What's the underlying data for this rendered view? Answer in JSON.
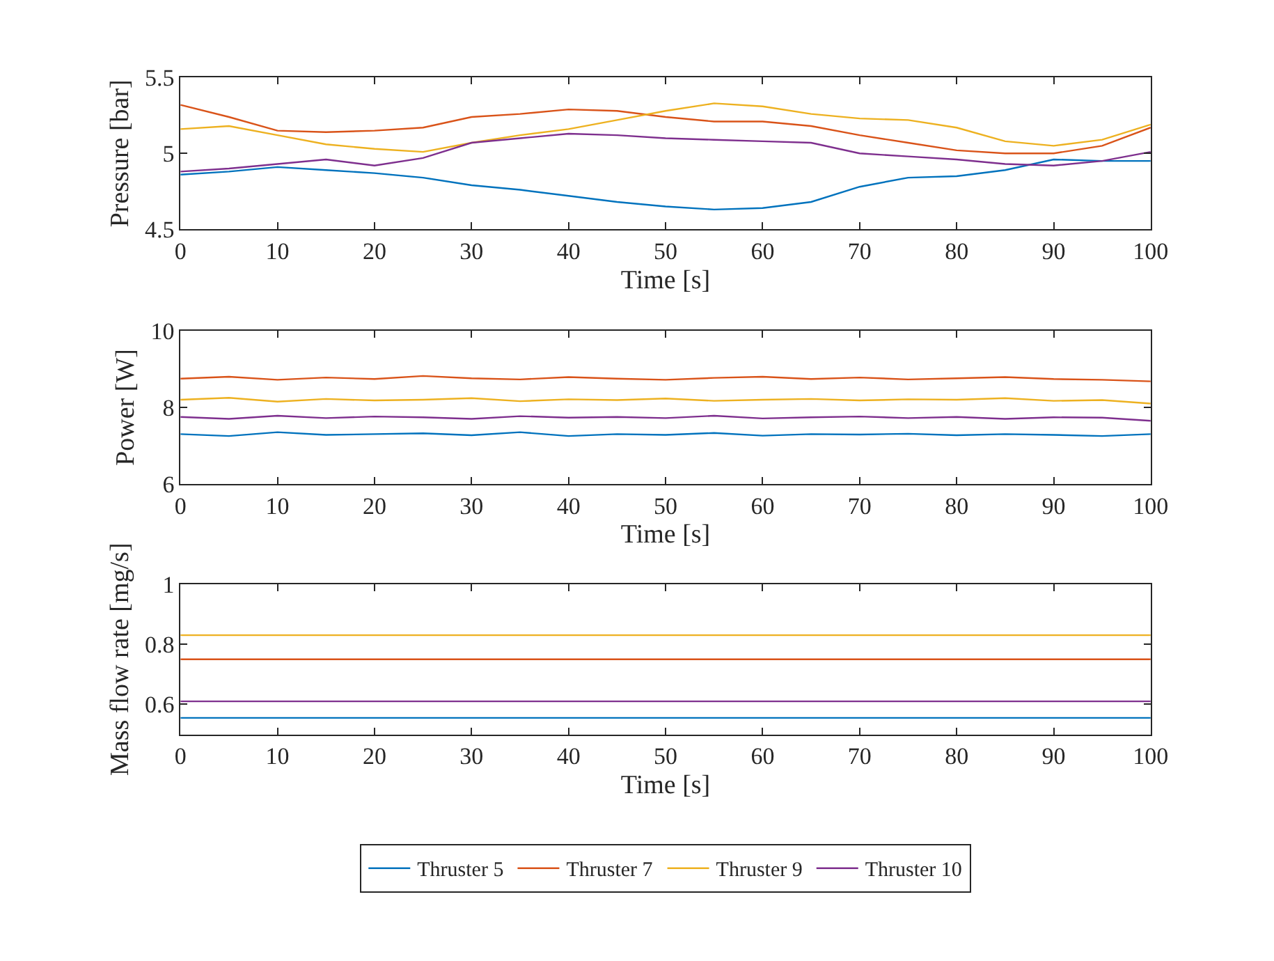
{
  "chart_data": [
    {
      "type": "line",
      "xlabel": "Time [s]",
      "ylabel": "Pressure [bar]",
      "xlim": [
        0,
        100
      ],
      "xticks": [
        0,
        10,
        20,
        30,
        40,
        50,
        60,
        70,
        80,
        90,
        100
      ],
      "ylim": [
        4.5,
        5.5
      ],
      "yticks": [
        4.5,
        5,
        5.5
      ],
      "x": [
        0,
        5,
        10,
        15,
        20,
        25,
        30,
        35,
        40,
        45,
        50,
        55,
        60,
        65,
        70,
        75,
        80,
        85,
        90,
        95,
        100
      ],
      "series": [
        {
          "color": "#0072bd",
          "values": [
            4.86,
            4.88,
            4.91,
            4.89,
            4.87,
            4.84,
            4.79,
            4.76,
            4.72,
            4.68,
            4.65,
            4.63,
            4.64,
            4.68,
            4.78,
            4.84,
            4.85,
            4.89,
            4.96,
            4.95,
            4.95
          ]
        },
        {
          "color": "#d95319",
          "values": [
            5.32,
            5.24,
            5.15,
            5.14,
            5.15,
            5.17,
            5.24,
            5.26,
            5.29,
            5.28,
            5.24,
            5.21,
            5.21,
            5.18,
            5.12,
            5.07,
            5.02,
            5.0,
            5.0,
            5.05,
            5.17
          ]
        },
        {
          "color": "#edb120",
          "values": [
            5.16,
            5.18,
            5.12,
            5.06,
            5.03,
            5.01,
            5.07,
            5.12,
            5.16,
            5.22,
            5.28,
            5.33,
            5.31,
            5.26,
            5.23,
            5.22,
            5.17,
            5.08,
            5.05,
            5.09,
            5.19
          ]
        },
        {
          "color": "#7e2f8e",
          "values": [
            4.88,
            4.9,
            4.93,
            4.96,
            4.92,
            4.97,
            5.07,
            5.1,
            5.13,
            5.12,
            5.1,
            5.09,
            5.08,
            5.07,
            5.0,
            4.98,
            4.96,
            4.93,
            4.92,
            4.95,
            5.01
          ]
        }
      ]
    },
    {
      "type": "line",
      "xlabel": "Time [s]",
      "ylabel": "Power [W]",
      "xlim": [
        0,
        100
      ],
      "xticks": [
        0,
        10,
        20,
        30,
        40,
        50,
        60,
        70,
        80,
        90,
        100
      ],
      "ylim": [
        6,
        10
      ],
      "yticks": [
        6,
        8,
        10
      ],
      "x": [
        0,
        5,
        10,
        15,
        20,
        25,
        30,
        35,
        40,
        45,
        50,
        55,
        60,
        65,
        70,
        75,
        80,
        85,
        90,
        95,
        100
      ],
      "series": [
        {
          "color": "#0072bd",
          "values": [
            7.3,
            7.25,
            7.35,
            7.28,
            7.3,
            7.32,
            7.27,
            7.35,
            7.25,
            7.3,
            7.28,
            7.33,
            7.26,
            7.3,
            7.29,
            7.31,
            7.27,
            7.3,
            7.28,
            7.25,
            7.3
          ]
        },
        {
          "color": "#d95319",
          "values": [
            8.75,
            8.8,
            8.72,
            8.78,
            8.74,
            8.82,
            8.76,
            8.73,
            8.79,
            8.75,
            8.72,
            8.77,
            8.8,
            8.74,
            8.78,
            8.73,
            8.76,
            8.79,
            8.74,
            8.72,
            8.68
          ]
        },
        {
          "color": "#edb120",
          "values": [
            8.2,
            8.25,
            8.15,
            8.22,
            8.18,
            8.2,
            8.24,
            8.16,
            8.21,
            8.19,
            8.23,
            8.17,
            8.2,
            8.22,
            8.18,
            8.21,
            8.2,
            8.24,
            8.17,
            8.19,
            8.1
          ]
        },
        {
          "color": "#7e2f8e",
          "values": [
            7.75,
            7.7,
            7.78,
            7.72,
            7.76,
            7.74,
            7.7,
            7.77,
            7.73,
            7.75,
            7.72,
            7.78,
            7.71,
            7.74,
            7.76,
            7.72,
            7.75,
            7.7,
            7.74,
            7.73,
            7.65
          ]
        }
      ]
    },
    {
      "type": "line",
      "xlabel": "Time [s]",
      "ylabel": "Mass flow rate [mg/s]",
      "xlim": [
        0,
        100
      ],
      "xticks": [
        0,
        10,
        20,
        30,
        40,
        50,
        60,
        70,
        80,
        90,
        100
      ],
      "ylim": [
        0.5,
        1
      ],
      "yticks": [
        0.6,
        0.8,
        1
      ],
      "legend": "bottom",
      "x": [
        0,
        100
      ],
      "series": [
        {
          "name": "Thruster 5",
          "color": "#0072bd",
          "values": [
            0.555,
            0.555
          ]
        },
        {
          "name": "Thruster 7",
          "color": "#d95319",
          "values": [
            0.75,
            0.75
          ]
        },
        {
          "name": "Thruster 9",
          "color": "#edb120",
          "values": [
            0.83,
            0.83
          ]
        },
        {
          "name": "Thruster 10",
          "color": "#7e2f8e",
          "values": [
            0.61,
            0.61
          ]
        }
      ]
    }
  ]
}
